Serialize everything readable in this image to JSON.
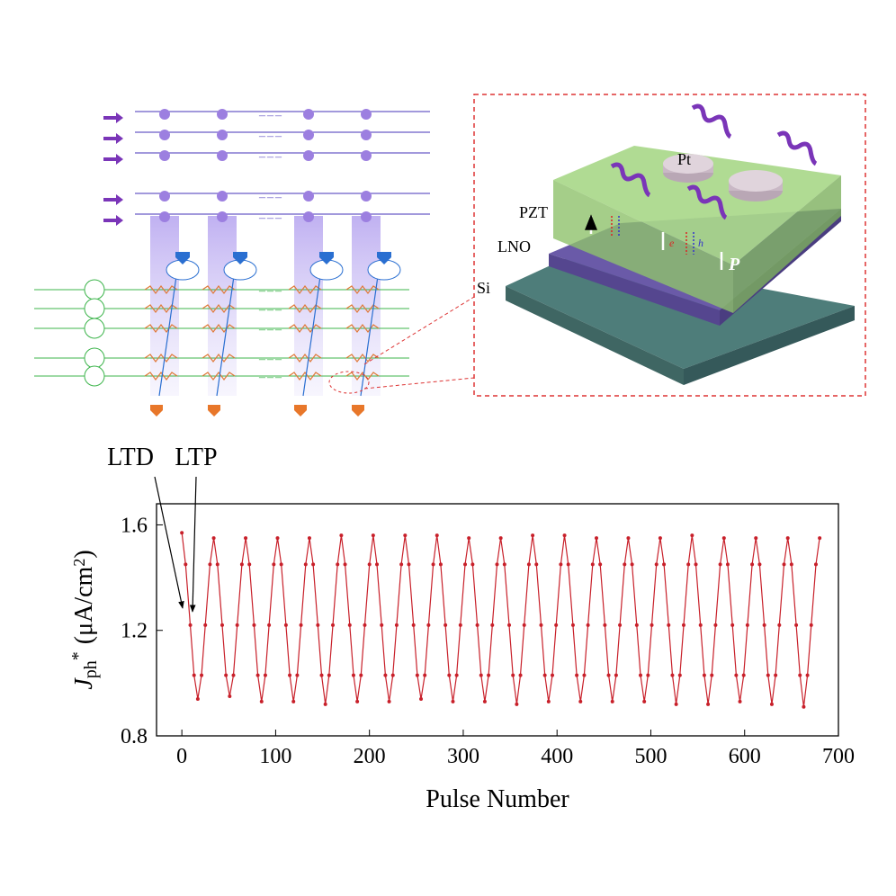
{
  "diagram": {
    "labels": {
      "pt": "Pt",
      "pzt": "PZT",
      "lno": "LNO",
      "si": "Si",
      "p": "P",
      "e": "e",
      "h": "h"
    }
  },
  "chart_data": {
    "type": "line",
    "xlabel": "Pulse Number",
    "ylabel_parts": [
      "J",
      "ph",
      "*",
      "(μA/cm",
      "2",
      ")"
    ],
    "annotations": [
      "LTD",
      "LTP"
    ],
    "x": [
      0,
      4,
      9,
      13,
      17,
      21,
      25,
      30,
      34,
      38,
      43,
      47,
      51,
      55,
      59,
      64,
      68,
      72,
      77,
      81,
      85,
      89,
      93,
      98,
      102,
      106,
      111,
      115,
      119,
      123,
      127,
      132,
      136,
      140,
      145,
      149,
      153,
      157,
      161,
      166,
      170,
      174,
      179,
      183,
      187,
      191,
      195,
      200,
      204,
      208,
      213,
      217,
      221,
      225,
      229,
      234,
      238,
      242,
      247,
      251,
      255,
      259,
      263,
      268,
      272,
      276,
      281,
      285,
      289,
      293,
      297,
      302,
      306,
      310,
      315,
      319,
      323,
      327,
      331,
      336,
      340,
      344,
      349,
      353,
      357,
      361,
      365,
      370,
      374,
      378,
      383,
      387,
      391,
      395,
      399,
      404,
      408,
      412,
      417,
      421,
      425,
      429,
      433,
      438,
      442,
      446,
      451,
      455,
      459,
      463,
      467,
      472,
      476,
      480,
      485,
      489,
      493,
      497,
      501,
      506,
      510,
      514,
      519,
      523,
      527,
      531,
      535,
      540,
      544,
      548,
      553,
      557,
      561,
      565,
      569,
      574,
      578,
      582,
      587,
      591,
      595,
      599,
      603,
      608,
      612,
      616,
      621,
      625,
      629,
      633,
      637,
      642,
      646,
      650,
      655,
      659,
      663,
      667,
      671,
      676,
      680
    ],
    "series": [
      {
        "color": "#c8202a",
        "values": [
          1.57,
          1.45,
          1.22,
          1.03,
          0.94,
          1.03,
          1.22,
          1.45,
          1.55,
          1.45,
          1.22,
          1.03,
          0.95,
          1.03,
          1.22,
          1.45,
          1.55,
          1.45,
          1.22,
          1.03,
          0.93,
          1.03,
          1.22,
          1.45,
          1.55,
          1.45,
          1.22,
          1.03,
          0.93,
          1.03,
          1.22,
          1.45,
          1.55,
          1.45,
          1.22,
          1.03,
          0.92,
          1.03,
          1.22,
          1.45,
          1.56,
          1.45,
          1.22,
          1.03,
          0.93,
          1.03,
          1.22,
          1.45,
          1.56,
          1.45,
          1.22,
          1.03,
          0.93,
          1.03,
          1.22,
          1.45,
          1.56,
          1.45,
          1.22,
          1.03,
          0.94,
          1.03,
          1.22,
          1.45,
          1.56,
          1.45,
          1.22,
          1.03,
          0.93,
          1.03,
          1.22,
          1.45,
          1.55,
          1.45,
          1.22,
          1.03,
          0.93,
          1.03,
          1.22,
          1.45,
          1.55,
          1.45,
          1.22,
          1.03,
          0.92,
          1.03,
          1.22,
          1.45,
          1.56,
          1.45,
          1.22,
          1.03,
          0.93,
          1.03,
          1.22,
          1.45,
          1.56,
          1.45,
          1.22,
          1.03,
          0.93,
          1.03,
          1.22,
          1.45,
          1.55,
          1.45,
          1.22,
          1.03,
          0.93,
          1.03,
          1.22,
          1.45,
          1.55,
          1.45,
          1.22,
          1.03,
          0.93,
          1.03,
          1.22,
          1.45,
          1.55,
          1.45,
          1.22,
          1.03,
          0.92,
          1.03,
          1.22,
          1.45,
          1.56,
          1.45,
          1.22,
          1.03,
          0.92,
          1.03,
          1.22,
          1.45,
          1.55,
          1.45,
          1.22,
          1.03,
          0.93,
          1.03,
          1.22,
          1.45,
          1.55,
          1.45,
          1.22,
          1.03,
          0.92,
          1.03,
          1.22,
          1.45,
          1.55,
          1.45,
          1.22,
          1.03,
          0.91,
          1.03,
          1.22,
          1.45,
          1.55
        ]
      }
    ],
    "xlim": [
      -27,
      700
    ],
    "xticks": [
      0,
      100,
      200,
      300,
      400,
      500,
      600,
      700
    ],
    "ylim": [
      0.8,
      1.68
    ],
    "yticks": [
      0.8,
      1.2,
      1.6
    ]
  }
}
